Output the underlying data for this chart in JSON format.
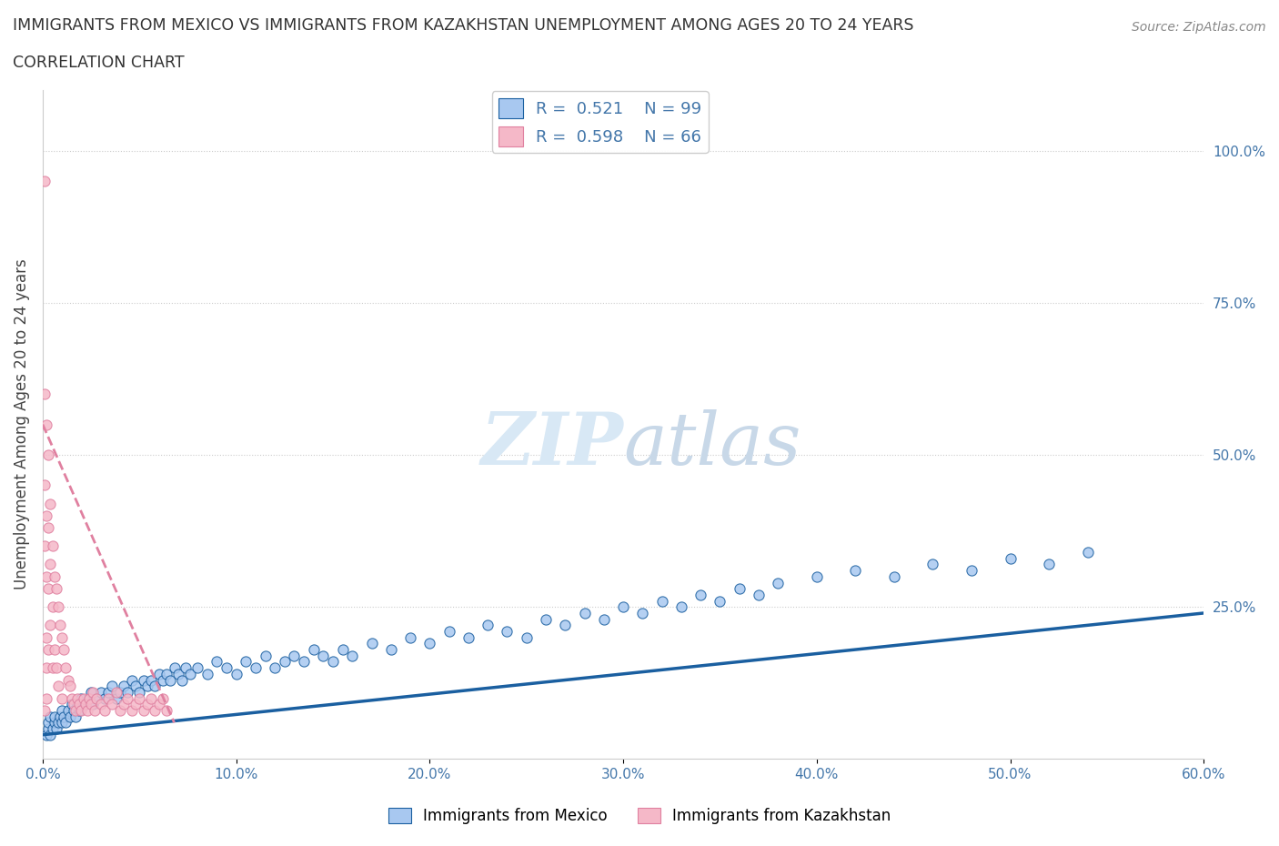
{
  "title_line1": "IMMIGRANTS FROM MEXICO VS IMMIGRANTS FROM KAZAKHSTAN UNEMPLOYMENT AMONG AGES 20 TO 24 YEARS",
  "title_line2": "CORRELATION CHART",
  "source": "Source: ZipAtlas.com",
  "ylabel": "Unemployment Among Ages 20 to 24 years",
  "yticks_right": [
    "100.0%",
    "75.0%",
    "50.0%",
    "25.0%"
  ],
  "ytick_vals": [
    1.0,
    0.75,
    0.5,
    0.25
  ],
  "r_mexico": 0.521,
  "n_mexico": 99,
  "r_kazakhstan": 0.598,
  "n_kazakhstan": 66,
  "color_mexico": "#a8c8f0",
  "color_kazakhstan": "#f5b8c8",
  "color_mexico_line": "#1a5fa0",
  "color_kazakhstan_line": "#e080a0",
  "background": "#ffffff",
  "watermark_color": "#d8e8f5",
  "mexico_scatter_x": [
    0.002,
    0.003,
    0.003,
    0.004,
    0.004,
    0.005,
    0.006,
    0.006,
    0.007,
    0.008,
    0.009,
    0.01,
    0.01,
    0.011,
    0.012,
    0.013,
    0.014,
    0.015,
    0.016,
    0.017,
    0.018,
    0.019,
    0.02,
    0.022,
    0.024,
    0.025,
    0.026,
    0.028,
    0.03,
    0.032,
    0.034,
    0.036,
    0.038,
    0.04,
    0.042,
    0.044,
    0.046,
    0.048,
    0.05,
    0.052,
    0.054,
    0.056,
    0.058,
    0.06,
    0.062,
    0.064,
    0.066,
    0.068,
    0.07,
    0.072,
    0.074,
    0.076,
    0.08,
    0.085,
    0.09,
    0.095,
    0.1,
    0.105,
    0.11,
    0.115,
    0.12,
    0.125,
    0.13,
    0.135,
    0.14,
    0.145,
    0.15,
    0.155,
    0.16,
    0.17,
    0.18,
    0.19,
    0.2,
    0.21,
    0.22,
    0.23,
    0.24,
    0.25,
    0.26,
    0.27,
    0.28,
    0.29,
    0.3,
    0.31,
    0.32,
    0.33,
    0.34,
    0.35,
    0.36,
    0.37,
    0.38,
    0.4,
    0.42,
    0.44,
    0.46,
    0.48,
    0.5,
    0.52,
    0.54
  ],
  "mexico_scatter_y": [
    0.04,
    0.05,
    0.06,
    0.04,
    0.07,
    0.05,
    0.06,
    0.07,
    0.05,
    0.06,
    0.07,
    0.06,
    0.08,
    0.07,
    0.06,
    0.08,
    0.07,
    0.09,
    0.08,
    0.07,
    0.09,
    0.08,
    0.1,
    0.09,
    0.1,
    0.11,
    0.09,
    0.1,
    0.11,
    0.1,
    0.11,
    0.12,
    0.1,
    0.11,
    0.12,
    0.11,
    0.13,
    0.12,
    0.11,
    0.13,
    0.12,
    0.13,
    0.12,
    0.14,
    0.13,
    0.14,
    0.13,
    0.15,
    0.14,
    0.13,
    0.15,
    0.14,
    0.15,
    0.14,
    0.16,
    0.15,
    0.14,
    0.16,
    0.15,
    0.17,
    0.15,
    0.16,
    0.17,
    0.16,
    0.18,
    0.17,
    0.16,
    0.18,
    0.17,
    0.19,
    0.18,
    0.2,
    0.19,
    0.21,
    0.2,
    0.22,
    0.21,
    0.2,
    0.23,
    0.22,
    0.24,
    0.23,
    0.25,
    0.24,
    0.26,
    0.25,
    0.27,
    0.26,
    0.28,
    0.27,
    0.29,
    0.3,
    0.31,
    0.3,
    0.32,
    0.31,
    0.33,
    0.32,
    0.34
  ],
  "kazakhstan_scatter_x": [
    0.001,
    0.001,
    0.001,
    0.001,
    0.001,
    0.002,
    0.002,
    0.002,
    0.002,
    0.002,
    0.002,
    0.003,
    0.003,
    0.003,
    0.003,
    0.004,
    0.004,
    0.004,
    0.005,
    0.005,
    0.005,
    0.006,
    0.006,
    0.007,
    0.007,
    0.008,
    0.008,
    0.009,
    0.01,
    0.01,
    0.011,
    0.012,
    0.013,
    0.014,
    0.015,
    0.016,
    0.017,
    0.018,
    0.019,
    0.02,
    0.021,
    0.022,
    0.023,
    0.024,
    0.025,
    0.026,
    0.027,
    0.028,
    0.03,
    0.032,
    0.034,
    0.036,
    0.038,
    0.04,
    0.042,
    0.044,
    0.046,
    0.048,
    0.05,
    0.052,
    0.054,
    0.056,
    0.058,
    0.06,
    0.062,
    0.064
  ],
  "kazakhstan_scatter_y": [
    0.95,
    0.6,
    0.45,
    0.35,
    0.08,
    0.55,
    0.4,
    0.3,
    0.2,
    0.15,
    0.1,
    0.5,
    0.38,
    0.28,
    0.18,
    0.42,
    0.32,
    0.22,
    0.35,
    0.25,
    0.15,
    0.3,
    0.18,
    0.28,
    0.15,
    0.25,
    0.12,
    0.22,
    0.2,
    0.1,
    0.18,
    0.15,
    0.13,
    0.12,
    0.1,
    0.09,
    0.08,
    0.1,
    0.09,
    0.08,
    0.1,
    0.09,
    0.08,
    0.1,
    0.09,
    0.11,
    0.08,
    0.1,
    0.09,
    0.08,
    0.1,
    0.09,
    0.11,
    0.08,
    0.09,
    0.1,
    0.08,
    0.09,
    0.1,
    0.08,
    0.09,
    0.1,
    0.08,
    0.09,
    0.1,
    0.08
  ],
  "xlim": [
    0.0,
    0.6
  ],
  "ylim": [
    0.0,
    1.1
  ],
  "mexico_trend_x": [
    0.0,
    0.6
  ],
  "mexico_trend_y": [
    0.04,
    0.24
  ],
  "kazakhstan_trend_x": [
    0.0,
    0.068
  ],
  "kazakhstan_trend_y": [
    0.55,
    0.06
  ]
}
